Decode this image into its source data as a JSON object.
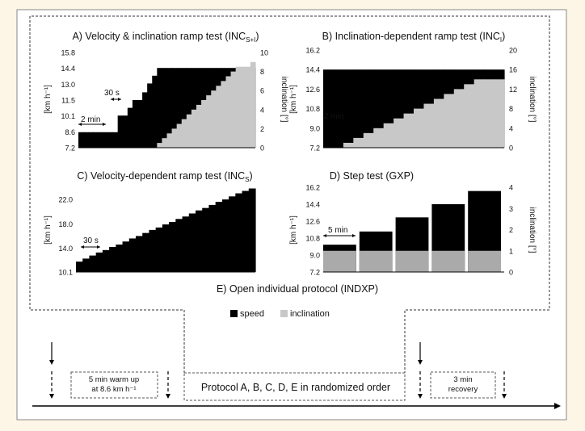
{
  "legend": {
    "speed": "speed",
    "inclination": "inclination"
  },
  "colors": {
    "page_bg": "#fdf5e6",
    "panel_bg": "#ffffff",
    "speed": "#000000",
    "inclination": "#c8c8c8"
  },
  "panelA": {
    "title_main": "A) Velocity & inclination ramp test (INC",
    "title_sub": "S+I",
    "title_end": ")",
    "y_left_label": "[km h⁻¹]",
    "y_right_label": "inclination [°]",
    "y_left_ticks": [
      "15.8",
      "14.4",
      "13.0",
      "11.5",
      "10.1",
      "8.6",
      "7.2"
    ],
    "y_right_ticks": [
      "10",
      "8",
      "6",
      "4",
      "2",
      "0"
    ],
    "annotations": [
      "2 min",
      "30 s"
    ],
    "speed_kmh": [
      8.6,
      8.6,
      8.6,
      8.6,
      8.6,
      8.6,
      8.6,
      8.6,
      10.1,
      10.1,
      10.8,
      11.5,
      11.5,
      12.2,
      13.0,
      13.7,
      14.4,
      14.4,
      14.4,
      14.4,
      14.4,
      14.4,
      14.4,
      14.4,
      14.4,
      14.4,
      14.4,
      14.4,
      14.4,
      14.4,
      14.4,
      14.4,
      14.4,
      14.4,
      14.4,
      14.4
    ],
    "inclination_deg": [
      0,
      0,
      0,
      0,
      0,
      0,
      0,
      0,
      0,
      0,
      0,
      0,
      0,
      0,
      0,
      0,
      0.5,
      1.0,
      1.5,
      2.0,
      2.5,
      3.0,
      3.5,
      4.0,
      4.5,
      5.0,
      5.5,
      6.0,
      6.5,
      7.0,
      7.5,
      8.0,
      8.5,
      8.5,
      8.5,
      9.0
    ]
  },
  "panelB": {
    "title_main": "B) Inclination-dependent ramp test (INC",
    "title_sub": "I",
    "title_end": ")",
    "y_left_label": "[km h⁻¹]",
    "y_right_label": "inclination [°]",
    "y_left_ticks": [
      "16.2",
      "14.4",
      "12.6",
      "10.8",
      "9.0",
      "7.2"
    ],
    "y_right_ticks": [
      "20",
      "16",
      "12",
      "8",
      "4",
      "0"
    ],
    "annotations": [
      "2 min"
    ],
    "speed_kmh": [
      14.4,
      14.4,
      14.4,
      14.4,
      14.4,
      14.4,
      14.4,
      14.4,
      14.4,
      14.4,
      14.4,
      14.4,
      14.4,
      14.4,
      14.4,
      14.4,
      14.4,
      14.4
    ],
    "inclination_deg": [
      0,
      0,
      1,
      2,
      3,
      4,
      5,
      6,
      7,
      8,
      9,
      10,
      11,
      12,
      13,
      14,
      14,
      14
    ]
  },
  "panelC": {
    "title_main": "C) Velocity-dependent ramp test (INC",
    "title_sub": "S",
    "title_end": ")",
    "y_left_label": "[km h⁻¹]",
    "y_left_ticks": [
      "22.0",
      "18.0",
      "14.0",
      "10.1"
    ],
    "annotations": [
      "30 s"
    ],
    "speed_kmh": [
      11.8,
      12.3,
      12.8,
      13.3,
      13.7,
      14.2,
      14.6,
      15.1,
      15.6,
      16.0,
      16.5,
      17.0,
      17.4,
      17.9,
      18.3,
      18.8,
      19.2,
      19.7,
      20.2,
      20.6,
      21.1,
      21.6,
      22.0,
      22.5,
      23.0,
      23.4,
      23.8
    ]
  },
  "panelD": {
    "title": "D) Step test (GXP)",
    "y_left_label": "[km h⁻¹]",
    "y_right_label": "inclination [°]",
    "y_left_ticks": [
      "16.2",
      "14.4",
      "12.6",
      "10.8",
      "9.0",
      "7.2"
    ],
    "y_right_ticks": [
      "4",
      "3",
      "2",
      "1",
      "0"
    ],
    "annotations": [
      "5 min"
    ],
    "speed_kmh": [
      10.1,
      11.5,
      13.0,
      14.4,
      15.8
    ],
    "inclination_deg": [
      1,
      1,
      1,
      1,
      1
    ]
  },
  "panelE": {
    "title": "E) Open individual protocol (INDXP)"
  },
  "timeline": {
    "warmup": "5 min warm up",
    "warmup_speed": "at 8.6 km h⁻¹",
    "protocols": "Protocol A, B, C, D, E in randomized order",
    "recovery_duration": "3 min",
    "recovery": "recovery"
  },
  "chart_data": [
    {
      "type": "bar",
      "title": "A) Velocity & inclination ramp test (INCS+I)",
      "ylabel": "[km h⁻¹]",
      "y2label": "inclination [°]",
      "ylim": [
        7.2,
        15.8
      ],
      "y2lim": [
        0,
        10
      ],
      "series": [
        {
          "name": "speed",
          "values": [
            8.6,
            8.6,
            8.6,
            8.6,
            8.6,
            8.6,
            8.6,
            8.6,
            10.1,
            10.1,
            10.8,
            11.5,
            11.5,
            12.2,
            13.0,
            13.7,
            14.4,
            14.4,
            14.4,
            14.4,
            14.4,
            14.4,
            14.4,
            14.4,
            14.4,
            14.4,
            14.4,
            14.4,
            14.4,
            14.4,
            14.4,
            14.4,
            14.4,
            14.4,
            14.4,
            14.4
          ]
        },
        {
          "name": "inclination",
          "values": [
            0,
            0,
            0,
            0,
            0,
            0,
            0,
            0,
            0,
            0,
            0,
            0,
            0,
            0,
            0,
            0,
            0.5,
            1.0,
            1.5,
            2.0,
            2.5,
            3.0,
            3.5,
            4.0,
            4.5,
            5.0,
            5.5,
            6.0,
            6.5,
            7.0,
            7.5,
            8.0,
            8.5,
            8.5,
            8.5,
            9.0
          ]
        }
      ]
    },
    {
      "type": "bar",
      "title": "B) Inclination-dependent ramp test (INCI)",
      "ylabel": "[km h⁻¹]",
      "y2label": "inclination [°]",
      "ylim": [
        7.2,
        16.2
      ],
      "y2lim": [
        0,
        20
      ],
      "series": [
        {
          "name": "speed",
          "values": [
            14.4,
            14.4,
            14.4,
            14.4,
            14.4,
            14.4,
            14.4,
            14.4,
            14.4,
            14.4,
            14.4,
            14.4,
            14.4,
            14.4,
            14.4,
            14.4,
            14.4,
            14.4
          ]
        },
        {
          "name": "inclination",
          "values": [
            0,
            0,
            1,
            2,
            3,
            4,
            5,
            6,
            7,
            8,
            9,
            10,
            11,
            12,
            13,
            14,
            14,
            14
          ]
        }
      ]
    },
    {
      "type": "bar",
      "title": "C) Velocity-dependent ramp test (INCS)",
      "ylabel": "[km h⁻¹]",
      "ylim": [
        10.1,
        24.0
      ],
      "series": [
        {
          "name": "speed",
          "values": [
            11.8,
            12.3,
            12.8,
            13.3,
            13.7,
            14.2,
            14.6,
            15.1,
            15.6,
            16.0,
            16.5,
            17.0,
            17.4,
            17.9,
            18.3,
            18.8,
            19.2,
            19.7,
            20.2,
            20.6,
            21.1,
            21.6,
            22.0,
            22.5,
            23.0,
            23.4,
            23.8
          ]
        }
      ]
    },
    {
      "type": "bar",
      "title": "D) Step test (GXP)",
      "ylabel": "[km h⁻¹]",
      "y2label": "inclination [°]",
      "ylim": [
        7.2,
        16.2
      ],
      "y2lim": [
        0,
        4
      ],
      "series": [
        {
          "name": "speed",
          "values": [
            10.1,
            11.5,
            13.0,
            14.4,
            15.8
          ]
        },
        {
          "name": "inclination",
          "values": [
            1,
            1,
            1,
            1,
            1
          ]
        }
      ]
    }
  ]
}
